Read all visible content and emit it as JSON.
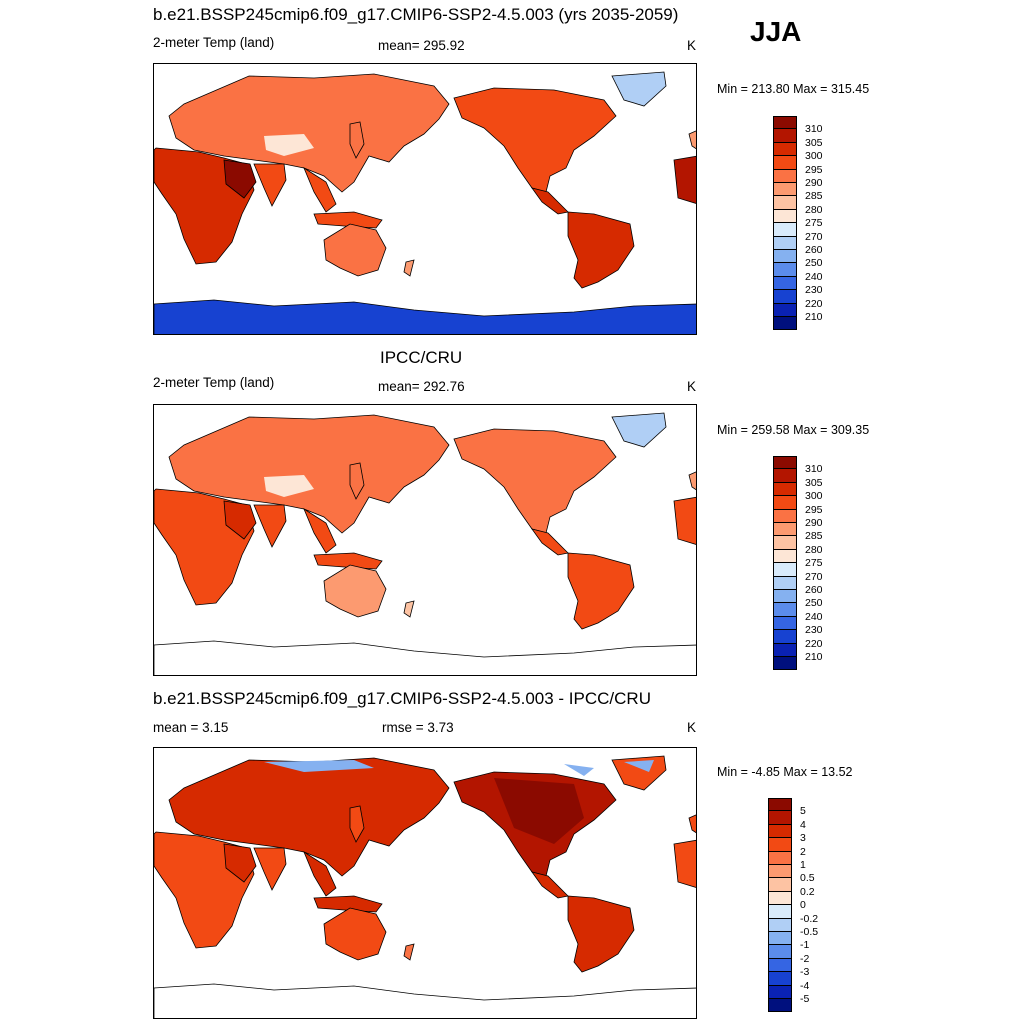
{
  "season": "JJA",
  "panels": [
    {
      "id": "model",
      "title": "b.e21.BSSP245cmip6.f09_g17.CMIP6-SSP2-4.5.003 (yrs 2035-2059)",
      "left_label": "2-meter Temp (land)",
      "center_label": "mean= 295.92",
      "units": "K",
      "minmax": "Min = 213.80 Max = 315.45"
    },
    {
      "id": "obs",
      "title": "IPCC/CRU",
      "left_label": "2-meter Temp (land)",
      "center_label": "mean= 292.76",
      "units": "K",
      "minmax": "Min = 259.58 Max = 309.35"
    },
    {
      "id": "diff",
      "title": "b.e21.BSSP245cmip6.f09_g17.CMIP6-SSP2-4.5.003 - IPCC/CRU",
      "left_label": "mean =   3.15",
      "center_label": "rmse =   3.73",
      "units": "K",
      "minmax": "Min =  -4.85 Max =  13.52"
    }
  ],
  "colorbars": {
    "temperature": {
      "labels": [
        "310",
        "305",
        "300",
        "295",
        "290",
        "285",
        "280",
        "275",
        "270",
        "260",
        "250",
        "240",
        "230",
        "220",
        "210"
      ],
      "colors": [
        "#8b0a00",
        "#b31500",
        "#d62a00",
        "#f24a14",
        "#fa7244",
        "#fc9a70",
        "#fdc3a3",
        "#fde6d6",
        "#d9ebfb",
        "#b0cff5",
        "#85b1f0",
        "#5b8ceb",
        "#3565e3",
        "#1742d1",
        "#0a22b3",
        "#00107e"
      ]
    },
    "difference": {
      "labels": [
        "5",
        "4",
        "3",
        "2",
        "1",
        "0.5",
        "0.2",
        "0",
        "-0.2",
        "-0.5",
        "-1",
        "-2",
        "-3",
        "-4",
        "-5"
      ],
      "colors": [
        "#8b0a00",
        "#b31500",
        "#d62a00",
        "#f24a14",
        "#fa7244",
        "#fc9a70",
        "#fdc3a3",
        "#fde6d6",
        "#d9ebfb",
        "#b0cff5",
        "#85b1f0",
        "#5b8ceb",
        "#3565e3",
        "#1742d1",
        "#0a22b3",
        "#00107e"
      ]
    }
  }
}
